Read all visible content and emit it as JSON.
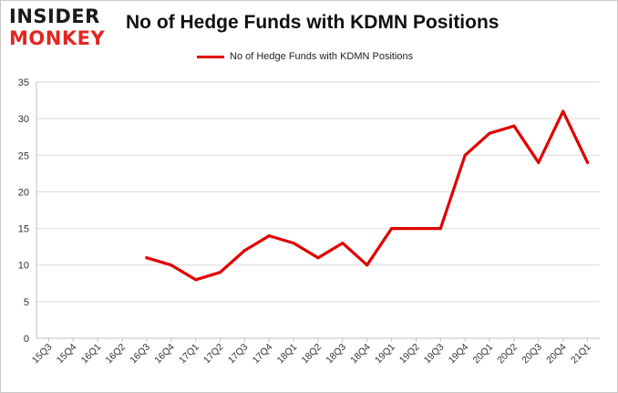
{
  "brand": {
    "line1": "INSIDER",
    "line2": "MONKEY"
  },
  "chart_data": {
    "type": "line",
    "title": "No of Hedge Funds with KDMN Positions",
    "xlabel": "",
    "ylabel": "",
    "categories": [
      "15Q3",
      "15Q4",
      "16Q1",
      "16Q2",
      "16Q3",
      "16Q4",
      "17Q1",
      "17Q2",
      "17Q3",
      "17Q4",
      "18Q1",
      "18Q2",
      "18Q3",
      "18Q4",
      "19Q1",
      "19Q2",
      "19Q3",
      "19Q4",
      "20Q1",
      "20Q2",
      "20Q3",
      "20Q4",
      "21Q1"
    ],
    "series": [
      {
        "name": "No of Hedge Funds with KDMN Positions",
        "values": [
          null,
          null,
          null,
          null,
          11,
          10,
          8,
          9,
          12,
          14,
          13,
          11,
          13,
          10,
          15,
          15,
          15,
          25,
          28,
          29,
          24,
          31,
          24
        ],
        "color": "#e00000"
      }
    ],
    "ylim": [
      0,
      35
    ],
    "yticks": [
      0,
      5,
      10,
      15,
      20,
      25,
      30,
      35
    ],
    "grid": true,
    "legend": "top-center"
  }
}
